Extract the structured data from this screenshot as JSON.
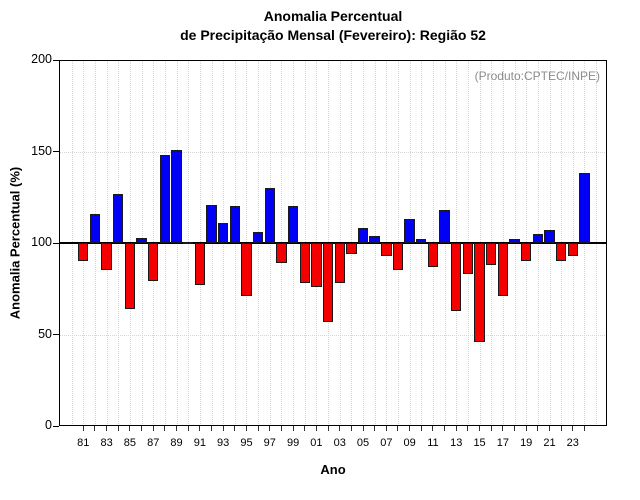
{
  "chart_data": {
    "type": "bar",
    "title_line1": "Anomalia Percentual",
    "title_line2": "de Precipitação Mensal (Fevereiro): Região 52",
    "annotation": "(Produto:CPTEC/INPE)",
    "xlabel": "Ano",
    "ylabel": "Anomalia Percentual (%)",
    "baseline": 100,
    "ylim": [
      0,
      200
    ],
    "yticks": [
      0,
      50,
      100,
      150,
      200
    ],
    "grid": "dotted",
    "legend_position": "none",
    "categories": [
      "81",
      "82",
      "83",
      "84",
      "85",
      "86",
      "87",
      "88",
      "89",
      "90",
      "91",
      "92",
      "93",
      "94",
      "95",
      "96",
      "97",
      "98",
      "99",
      "00",
      "01",
      "02",
      "03",
      "04",
      "05",
      "06",
      "07",
      "08",
      "09",
      "10",
      "11",
      "12",
      "13",
      "14",
      "15",
      "16",
      "17",
      "18",
      "19",
      "20",
      "21",
      "22",
      "23",
      "24"
    ],
    "values": [
      90,
      116,
      85,
      127,
      64,
      103,
      79,
      148,
      151,
      100.5,
      77,
      121,
      111,
      120,
      71,
      106,
      130,
      89,
      120,
      78,
      76,
      57,
      78,
      94,
      108,
      104,
      93,
      85,
      113,
      102,
      87,
      118,
      63,
      83,
      46,
      88,
      71,
      102,
      90,
      105,
      107,
      90,
      93,
      138
    ],
    "colors": {
      "above_baseline": "#0000f5",
      "below_baseline": "#f50000",
      "bar_outline": "#1a1a1a",
      "grid": "#d6d6d6",
      "axis": "#000000",
      "annotation_text": "#8c8c8c"
    }
  }
}
